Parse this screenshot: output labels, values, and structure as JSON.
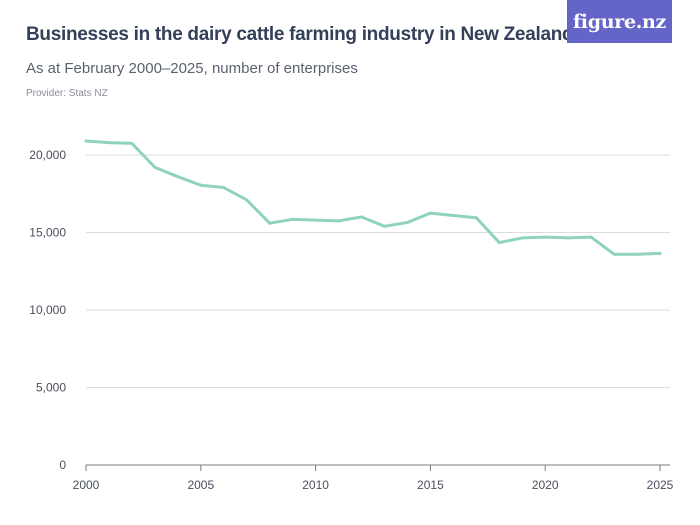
{
  "header": {
    "title": "Businesses in the dairy cattle farming industry in New Zealand",
    "subtitle": "As at February 2000–2025, number of enterprises",
    "provider": "Provider: Stats NZ",
    "logo_text": "figure.nz"
  },
  "colors": {
    "line": "#8fd3b8",
    "grid": "#dcdcdc",
    "axis": "#7a7a7a",
    "logo_bg": "#6465c6",
    "title": "#34405a"
  },
  "chart_data": {
    "type": "line",
    "title": "Businesses in the dairy cattle farming industry in New Zealand",
    "subtitle": "As at February 2000–2025, number of enterprises",
    "xlabel": "",
    "ylabel": "",
    "xlim": [
      2000,
      2025
    ],
    "ylim": [
      0,
      20000
    ],
    "x_ticks": [
      2000,
      2005,
      2010,
      2015,
      2020,
      2025
    ],
    "x_tick_labels": [
      "2000",
      "2005",
      "2010",
      "2015",
      "2020",
      "2025"
    ],
    "y_ticks": [
      0,
      5000,
      10000,
      15000,
      20000
    ],
    "y_tick_labels": [
      "0",
      "5,000",
      "10,000",
      "15,000",
      "20,000"
    ],
    "grid": "horizontal",
    "x": [
      2000,
      2001,
      2002,
      2003,
      2004,
      2005,
      2006,
      2007,
      2008,
      2009,
      2010,
      2011,
      2012,
      2013,
      2014,
      2015,
      2016,
      2017,
      2018,
      2019,
      2020,
      2021,
      2022,
      2023,
      2024,
      2025
    ],
    "series": [
      {
        "values": [
          20900,
          20800,
          20750,
          19200,
          18600,
          18050,
          17900,
          17100,
          15600,
          15850,
          15800,
          15750,
          16000,
          15400,
          15650,
          16250,
          16100,
          15950,
          14350,
          14650,
          14700,
          14650,
          14700,
          13600,
          13600,
          13650
        ]
      }
    ]
  }
}
